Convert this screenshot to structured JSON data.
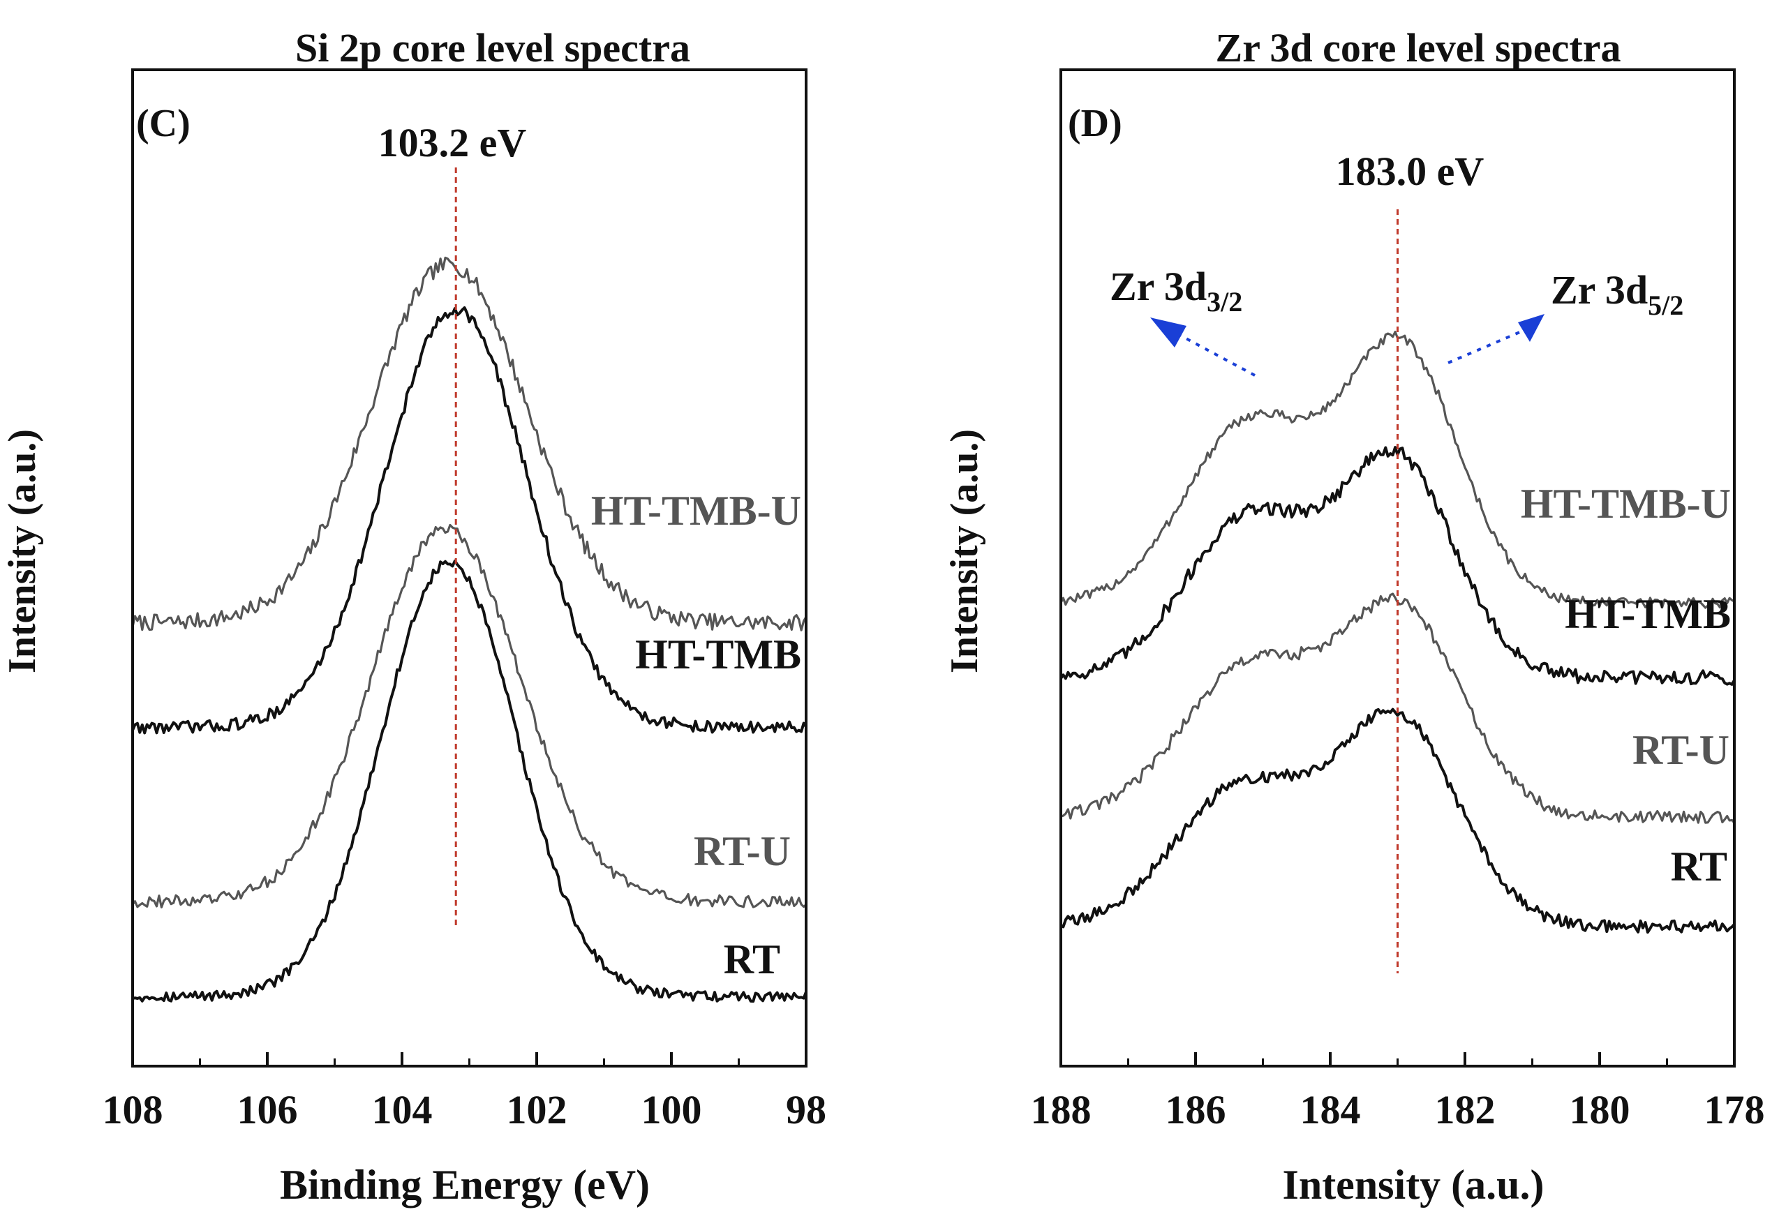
{
  "chart_data": [
    {
      "type": "line",
      "title": "Si 2p core level spectra",
      "panel_label": "(C)",
      "xlabel": "Binding Energy (eV)",
      "ylabel": "Intensity (a.u.)",
      "xlim": [
        108,
        98
      ],
      "x_reversed": true,
      "ylim": [
        0,
        10
      ],
      "xticks": [
        108,
        106,
        104,
        102,
        100,
        98
      ],
      "xtick_labels": [
        "108",
        "106",
        "104",
        "102",
        "100",
        "98"
      ],
      "peak_marker": {
        "x": 103.2,
        "label": "103.2 eV",
        "color": "#c0392b"
      },
      "series": [
        {
          "name": "HT-TMB-U",
          "label": "HT-TMB-U",
          "color": "#555555",
          "offset": 4.45,
          "noise": 0.08,
          "peaks": [
            {
              "center": 103.3,
              "height": 3.6,
              "width": 1.15
            }
          ]
        },
        {
          "name": "HT-TMB",
          "label": "HT-TMB",
          "color": "#111111",
          "offset": 3.4,
          "noise": 0.06,
          "peaks": [
            {
              "center": 103.2,
              "height": 4.2,
              "width": 1.05
            }
          ]
        },
        {
          "name": "RT-U",
          "label": "RT-U",
          "color": "#555555",
          "offset": 1.65,
          "noise": 0.06,
          "peaks": [
            {
              "center": 103.35,
              "height": 3.75,
              "width": 1.1
            }
          ]
        },
        {
          "name": "RT",
          "label": "RT",
          "color": "#111111",
          "offset": 0.7,
          "noise": 0.05,
          "peaks": [
            {
              "center": 103.3,
              "height": 4.35,
              "width": 1.0
            }
          ]
        }
      ]
    },
    {
      "type": "line",
      "title": "Zr 3d core level spectra",
      "panel_label": "(D)",
      "xlabel": "Intensity (a.u.)",
      "ylabel": "Intensity (a.u.)",
      "xlim": [
        188,
        178
      ],
      "x_reversed": true,
      "ylim": [
        0,
        10
      ],
      "xticks": [
        188,
        186,
        184,
        182,
        180,
        178
      ],
      "xtick_labels": [
        "188",
        "186",
        "184",
        "182",
        "180",
        "178"
      ],
      "peak_marker": {
        "x": 183.0,
        "label": "183.0 eV",
        "color": "#c0392b"
      },
      "annotations": [
        {
          "base": "Zr 3d",
          "sub": "3/2",
          "arrow_color": "#1a3fd6"
        },
        {
          "base": "Zr 3d",
          "sub": "5/2",
          "arrow_color": "#1a3fd6"
        }
      ],
      "series": [
        {
          "name": "HT-TMB-U",
          "label": "HT-TMB-U",
          "color": "#555555",
          "offset": 4.65,
          "noise": 0.05,
          "peaks": [
            {
              "center": 185.2,
              "height": 1.8,
              "width": 0.95
            },
            {
              "center": 182.95,
              "height": 2.55,
              "width": 0.85
            }
          ]
        },
        {
          "name": "HT-TMB",
          "label": "HT-TMB",
          "color": "#111111",
          "offset": 3.9,
          "noise": 0.07,
          "peaks": [
            {
              "center": 185.2,
              "height": 1.6,
              "width": 0.95
            },
            {
              "center": 183.0,
              "height": 2.15,
              "width": 0.85
            }
          ]
        },
        {
          "name": "RT-U",
          "label": "RT-U",
          "color": "#555555",
          "offset": 2.5,
          "noise": 0.06,
          "peaks": [
            {
              "center": 185.2,
              "height": 1.5,
              "width": 1.0
            },
            {
              "center": 182.95,
              "height": 2.05,
              "width": 0.9
            }
          ]
        },
        {
          "name": "RT",
          "label": "RT",
          "color": "#111111",
          "offset": 1.4,
          "noise": 0.06,
          "peaks": [
            {
              "center": 185.3,
              "height": 1.4,
              "width": 1.0
            },
            {
              "center": 183.0,
              "height": 2.05,
              "width": 0.9
            }
          ]
        }
      ]
    }
  ]
}
